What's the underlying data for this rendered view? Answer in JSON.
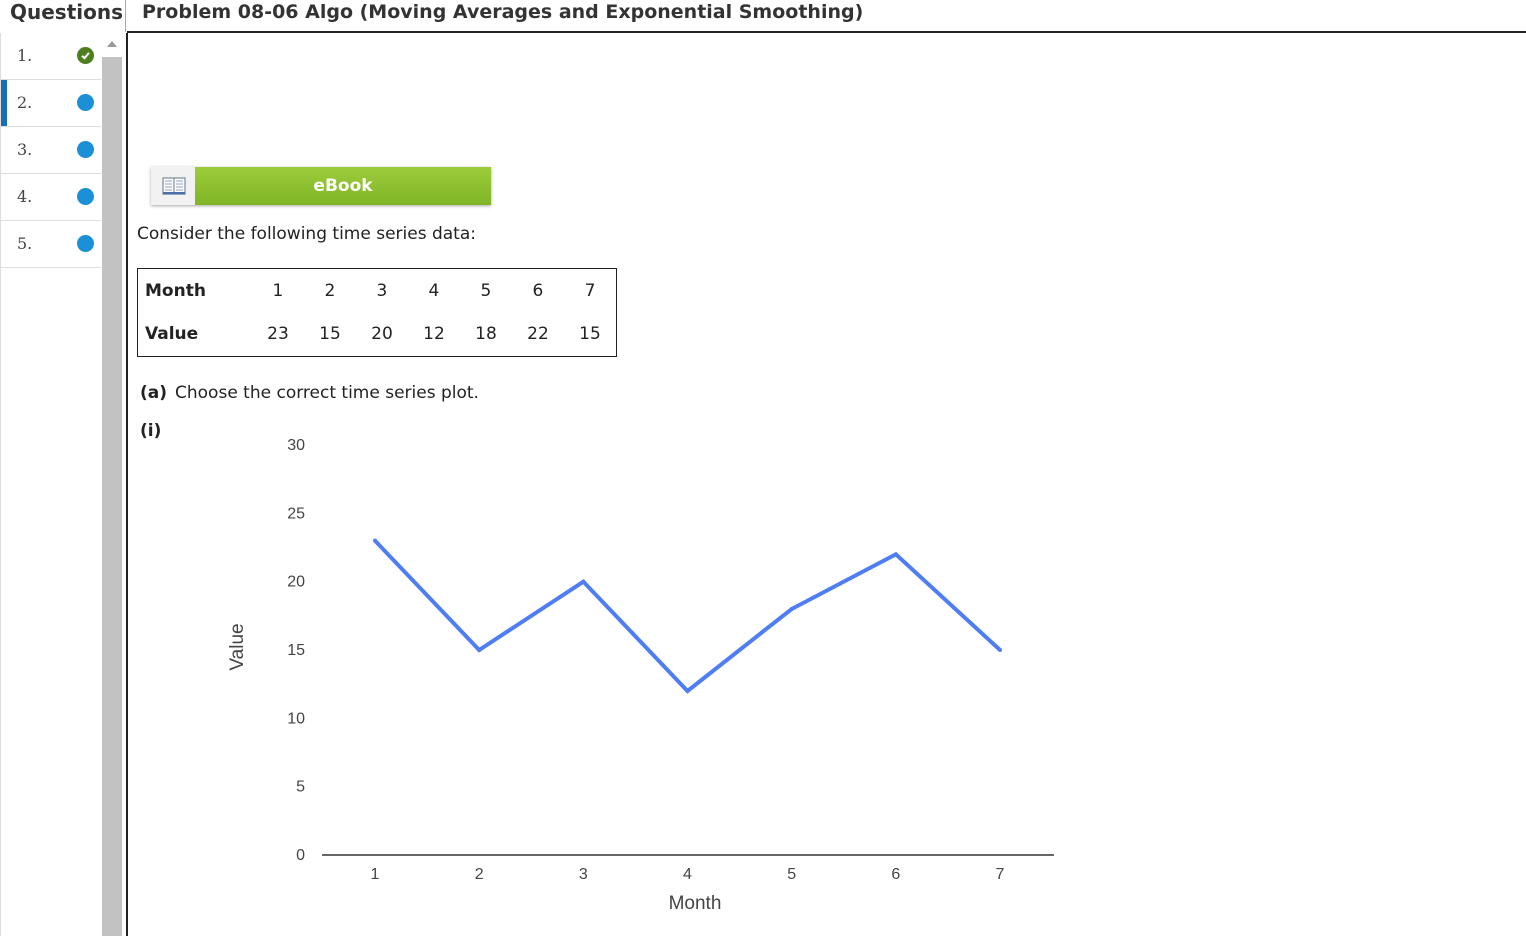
{
  "header": {
    "questions_label": "Questions",
    "problem_title": "Problem 08-06 Algo (Moving Averages and Exponential Smoothing)"
  },
  "sidebar": {
    "items": [
      {
        "number": "1.",
        "status": "complete"
      },
      {
        "number": "2.",
        "status": "current"
      },
      {
        "number": "3.",
        "status": "open"
      },
      {
        "number": "4.",
        "status": "open"
      },
      {
        "number": "5.",
        "status": "open"
      }
    ]
  },
  "ebook": {
    "label": "eBook",
    "icon": "book-icon"
  },
  "intro_text": "Consider the following time series data:",
  "table": {
    "month_label": "Month",
    "value_label": "Value",
    "months": [
      "1",
      "2",
      "3",
      "4",
      "5",
      "6",
      "7"
    ],
    "values": [
      "23",
      "15",
      "20",
      "12",
      "18",
      "22",
      "15"
    ]
  },
  "part_a": {
    "label": "(a)",
    "text": "Choose the correct time series plot."
  },
  "option_i": {
    "label": "(i)"
  },
  "colors": {
    "series_line": "#4f7df3",
    "ebook_green": "#8cc230",
    "active_marker": "#1b6fb0",
    "status_open": "#1b90d6",
    "status_complete": "#4d7f20"
  },
  "chart_data": {
    "type": "line",
    "x": [
      1,
      2,
      3,
      4,
      5,
      6,
      7
    ],
    "y": [
      23,
      15,
      20,
      12,
      18,
      22,
      15
    ],
    "xlabel": "Month",
    "ylabel": "Value",
    "ylim": [
      0,
      30
    ],
    "xlim": [
      1,
      7
    ],
    "y_ticks": [
      "0",
      "5",
      "10",
      "15",
      "20",
      "25",
      "30"
    ],
    "x_ticks": [
      "1",
      "2",
      "3",
      "4",
      "5",
      "6",
      "7"
    ],
    "grid": false
  }
}
